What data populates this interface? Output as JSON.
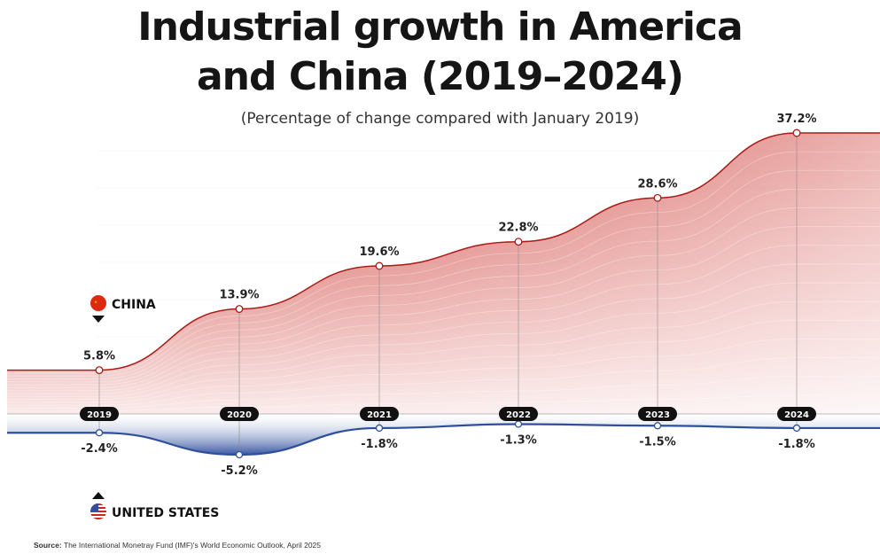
{
  "title_line_1": "Industrial growth in America",
  "title_line_2": "and China (2019–2024)",
  "subtitle": "(Percentage of change compared with January 2019)",
  "source_label": "Source:",
  "source_text": "The International Monetray Fund (IMF)'s World Economic Outlook, April 2025",
  "colors": {
    "china": "#c8261f",
    "us": "#2e4f9e",
    "pill": "#111111",
    "text": "#1a1a1a"
  },
  "chart_data": {
    "type": "area",
    "categories": [
      "2019",
      "2020",
      "2021",
      "2022",
      "2023",
      "2024"
    ],
    "series": [
      {
        "name": "CHINA",
        "values": [
          5.8,
          13.9,
          19.6,
          22.8,
          28.6,
          37.2
        ],
        "labels": [
          "5.8%",
          "13.9%",
          "19.6%",
          "22.8%",
          "28.6%",
          "37.2%"
        ]
      },
      {
        "name": "UNITED STATES",
        "values": [
          -2.4,
          -5.2,
          -1.8,
          -1.3,
          -1.5,
          -1.8
        ],
        "labels": [
          "-2.4%",
          "-5.2%",
          "-1.8%",
          "-1.3%",
          "-1.5%",
          "-1.8%"
        ]
      }
    ],
    "legend_placement": "left"
  }
}
